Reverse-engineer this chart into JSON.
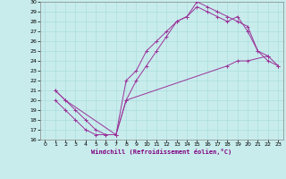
{
  "xlabel": "Windchill (Refroidissement éolien,°C)",
  "xlim": [
    -0.5,
    23.5
  ],
  "ylim": [
    16,
    30
  ],
  "xticks": [
    0,
    1,
    2,
    3,
    4,
    5,
    6,
    7,
    8,
    9,
    10,
    11,
    12,
    13,
    14,
    15,
    16,
    17,
    18,
    19,
    20,
    21,
    22,
    23
  ],
  "yticks": [
    16,
    17,
    18,
    19,
    20,
    21,
    22,
    23,
    24,
    25,
    26,
    27,
    28,
    29,
    30
  ],
  "bg_color": "#c8ecec",
  "line_color": "#993399",
  "grid_color": "#aadddd",
  "line1_x": [
    1,
    2,
    3,
    4,
    5,
    6,
    7,
    8,
    9,
    10,
    11,
    12,
    13,
    14,
    15,
    16,
    17,
    18,
    19,
    20,
    21,
    22
  ],
  "line1_y": [
    21,
    20,
    19,
    18,
    17,
    16.5,
    16.5,
    22,
    23,
    25,
    26,
    27,
    28,
    28.5,
    30,
    29.5,
    29,
    28.5,
    28,
    27.5,
    25,
    24.5
  ],
  "line2_x": [
    1,
    2,
    3,
    4,
    5,
    6,
    7,
    8,
    9,
    10,
    11,
    12,
    13,
    14,
    15,
    16,
    17,
    18,
    19,
    20,
    21,
    22,
    23
  ],
  "line2_y": [
    20,
    19,
    18,
    17,
    16.5,
    16.5,
    16.5,
    20,
    22,
    23.5,
    25,
    26.5,
    28,
    28.5,
    29.5,
    29,
    28.5,
    28,
    28.5,
    27,
    25,
    24,
    23.5
  ],
  "line3_x": [
    1,
    2,
    7,
    8,
    18,
    19,
    20,
    22,
    23
  ],
  "line3_y": [
    21,
    20,
    16.5,
    20,
    23.5,
    24,
    24,
    24.5,
    23.5
  ]
}
